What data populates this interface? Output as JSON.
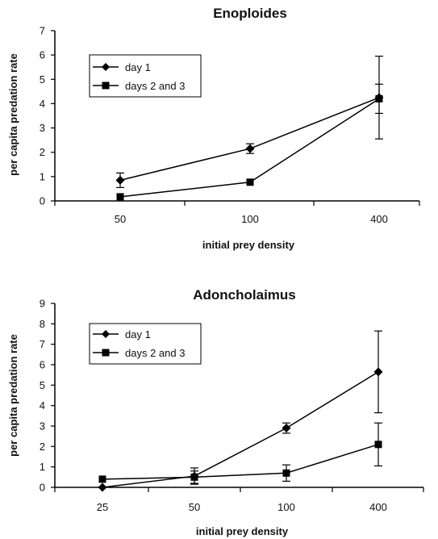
{
  "chart_data": [
    {
      "type": "line",
      "title": "Enoploides",
      "xlabel": "initial prey density",
      "ylabel": "per capita predation rate",
      "categories": [
        "50",
        "100",
        "400"
      ],
      "ylim": [
        0,
        7
      ],
      "yticks": [
        "0",
        "1",
        "2",
        "3",
        "4",
        "5",
        "6",
        "7"
      ],
      "legend_position": "top-left",
      "series": [
        {
          "name": "day 1",
          "marker": "diamond",
          "values": [
            0.85,
            2.15,
            4.25
          ],
          "errors": [
            0.3,
            0.2,
            1.7
          ]
        },
        {
          "name": "days 2 and 3",
          "marker": "square",
          "values": [
            0.17,
            0.77,
            4.2
          ],
          "errors": [
            0,
            0,
            0.6
          ]
        }
      ]
    },
    {
      "type": "line",
      "title": "Adoncholaimus",
      "xlabel": "initial prey density",
      "ylabel": "per capita predation rate",
      "categories": [
        "25",
        "50",
        "100",
        "400"
      ],
      "ylim": [
        0,
        9
      ],
      "yticks": [
        "0",
        "1",
        "2",
        "3",
        "4",
        "5",
        "6",
        "7",
        "8",
        "9"
      ],
      "legend_position": "top-left",
      "series": [
        {
          "name": "day 1",
          "marker": "diamond",
          "values": [
            0.0,
            0.55,
            2.9,
            5.65
          ],
          "errors": [
            0,
            0.4,
            0.25,
            2.0
          ]
        },
        {
          "name": "days 2 and 3",
          "marker": "square",
          "values": [
            0.4,
            0.5,
            0.7,
            2.1
          ],
          "errors": [
            0,
            0.3,
            0.4,
            1.05
          ]
        }
      ]
    }
  ]
}
